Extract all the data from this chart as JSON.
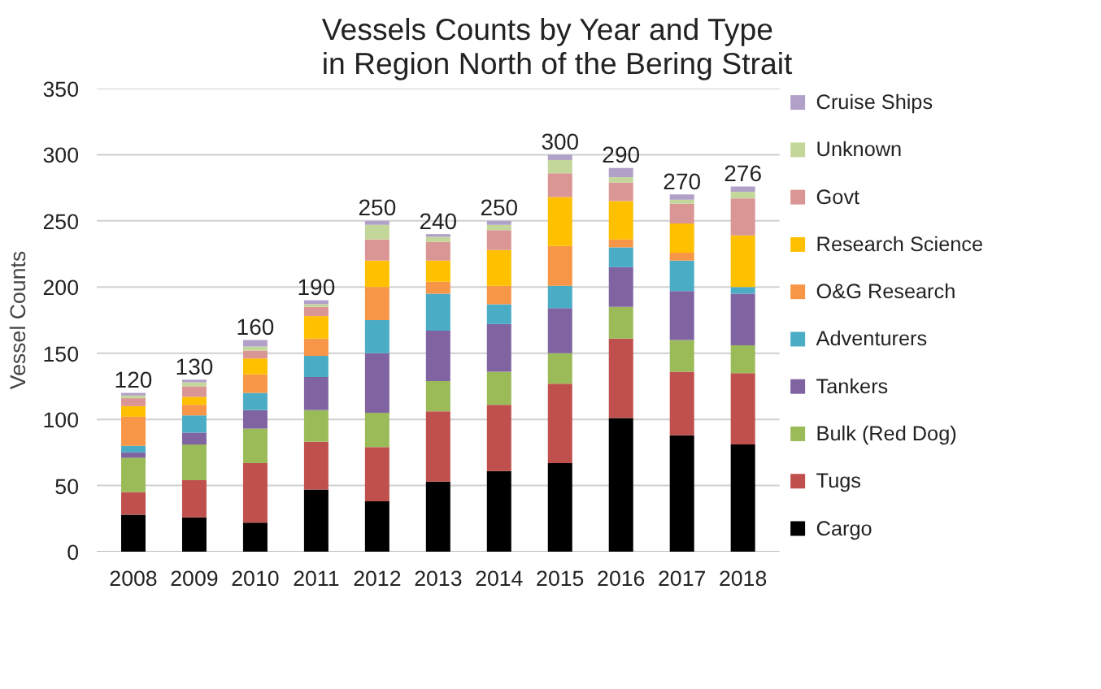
{
  "chart_data": {
    "type": "bar",
    "stacked": true,
    "title": "Vessels Counts by Year and Type\nin Region North of the Bering Strait",
    "ylabel": "Vessel Counts",
    "categories": [
      "2008",
      "2009",
      "2010",
      "2011",
      "2012",
      "2013",
      "2014",
      "2015",
      "2016",
      "2017",
      "2018"
    ],
    "series": [
      {
        "name": "Cargo",
        "color": "#000000",
        "values": [
          28,
          26,
          22,
          47,
          38,
          53,
          61,
          67,
          101,
          88,
          81
        ]
      },
      {
        "name": "Tugs",
        "color": "#c0504d",
        "values": [
          17,
          28,
          45,
          36,
          41,
          53,
          50,
          60,
          60,
          48,
          54
        ]
      },
      {
        "name": "Bulk (Red Dog)",
        "color": "#9bbb59",
        "values": [
          26,
          27,
          26,
          24,
          26,
          23,
          25,
          23,
          24,
          24,
          21
        ]
      },
      {
        "name": "Tankers",
        "color": "#8064a2",
        "values": [
          4,
          9,
          14,
          25,
          45,
          38,
          36,
          34,
          30,
          37,
          39
        ]
      },
      {
        "name": "Adventurers",
        "color": "#4bacc6",
        "values": [
          5,
          13,
          13,
          16,
          25,
          28,
          15,
          17,
          15,
          23,
          5
        ]
      },
      {
        "name": "O&G Research",
        "color": "#f79646",
        "values": [
          22,
          8,
          14,
          13,
          25,
          9,
          14,
          30,
          6,
          6,
          0
        ]
      },
      {
        "name": "Research Science",
        "color": "#ffc000",
        "values": [
          8,
          6,
          12,
          17,
          20,
          16,
          27,
          37,
          29,
          22,
          39
        ]
      },
      {
        "name": "Govt",
        "color": "#da9694",
        "values": [
          6,
          8,
          6,
          7,
          16,
          14,
          15,
          18,
          14,
          15,
          28
        ]
      },
      {
        "name": "Unknown",
        "color": "#c4d79b",
        "values": [
          2,
          3,
          3,
          2,
          11,
          4,
          4,
          10,
          4,
          3,
          5
        ]
      },
      {
        "name": "Cruise Ships",
        "color": "#b1a0c7",
        "values": [
          2,
          2,
          5,
          3,
          3,
          2,
          3,
          4,
          7,
          4,
          4
        ]
      }
    ],
    "totals": [
      "120",
      "130",
      "160",
      "190",
      "250",
      "240",
      "250",
      "300",
      "290",
      "270",
      "276"
    ],
    "ylim": [
      0,
      350
    ],
    "yticks": [
      0,
      50,
      100,
      150,
      200,
      250,
      300,
      350
    ],
    "grid": "y",
    "legend": "right"
  }
}
